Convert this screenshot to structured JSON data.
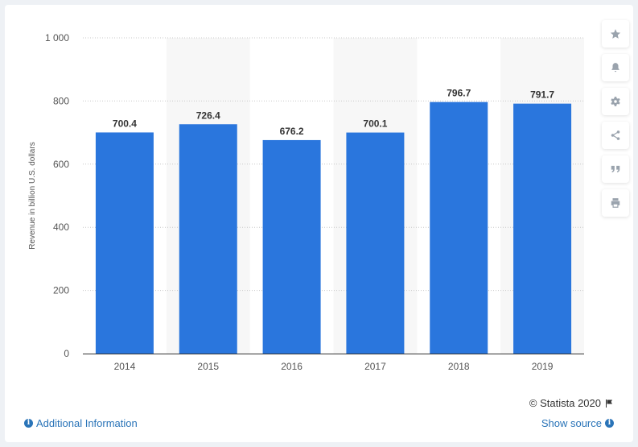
{
  "chart_data": {
    "type": "bar",
    "categories": [
      "2014",
      "2015",
      "2016",
      "2017",
      "2018",
      "2019"
    ],
    "values": [
      700.4,
      726.4,
      676.2,
      700.1,
      796.7,
      791.7
    ],
    "value_labels": [
      "700.4",
      "726.4",
      "676.2",
      "700.1",
      "796.7",
      "791.7"
    ],
    "ylabel": "Revenue in billion U.S. dollars",
    "ylim": [
      0,
      1000
    ],
    "yticks": [
      0,
      200,
      400,
      600,
      800,
      1000
    ],
    "ytick_labels": [
      "0",
      "200",
      "400",
      "600",
      "800",
      "1 000"
    ],
    "grid": true,
    "bar_color": "#2a76dd",
    "band_color": "#f7f7f7"
  },
  "footer": {
    "copyright": "© Statista 2020",
    "additional_info": "Additional Information",
    "show_source": "Show source"
  },
  "toolbar": {
    "icons": [
      "star-icon",
      "bell-icon",
      "gear-icon",
      "share-icon",
      "quote-icon",
      "print-icon"
    ]
  }
}
